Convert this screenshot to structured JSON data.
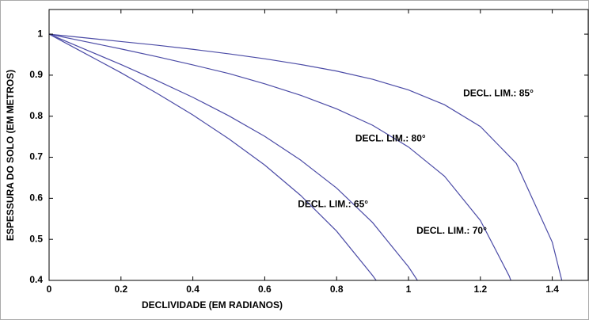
{
  "chart_data": {
    "type": "line",
    "xlabel": "DECLIVIDADE (EM RADIANOS)",
    "ylabel": "ESPESSURA DO SOLO (EM METROS)",
    "xlim": [
      0,
      1.5
    ],
    "ylim": [
      0.4,
      1.06
    ],
    "xticks": [
      0,
      0.2,
      0.4,
      0.6,
      0.8,
      1,
      1.2,
      1.4
    ],
    "yticks": [
      0.4,
      0.5,
      0.6,
      0.7,
      0.8,
      0.9,
      1
    ],
    "grid": false,
    "series": [
      {
        "name": "DECL. LIM.: 85°",
        "color": "#4b4ba6",
        "x": [
          0,
          0.1,
          0.2,
          0.3,
          0.4,
          0.5,
          0.6,
          0.7,
          0.8,
          0.9,
          1.0,
          1.1,
          1.2,
          1.3,
          1.4,
          1.43
        ],
        "values": [
          1,
          0.991,
          0.982,
          0.973,
          0.963,
          0.952,
          0.94,
          0.926,
          0.91,
          0.89,
          0.864,
          0.828,
          0.775,
          0.685,
          0.493,
          0.388
        ]
      },
      {
        "name": "DECL. LIM.: 80°",
        "color": "#4b4ba6",
        "x": [
          0,
          0.1,
          0.2,
          0.3,
          0.4,
          0.5,
          0.6,
          0.7,
          0.8,
          0.9,
          1.0,
          1.1,
          1.2,
          1.28,
          1.3
        ],
        "values": [
          1,
          0.982,
          0.964,
          0.945,
          0.925,
          0.904,
          0.879,
          0.851,
          0.818,
          0.778,
          0.725,
          0.654,
          0.546,
          0.411,
          0.365
        ]
      },
      {
        "name": "DECL. LIM.: 70°",
        "color": "#4b4ba6",
        "x": [
          0,
          0.1,
          0.2,
          0.3,
          0.4,
          0.5,
          0.6,
          0.7,
          0.8,
          0.9,
          1.0,
          1.04
        ],
        "values": [
          1,
          0.963,
          0.926,
          0.887,
          0.846,
          0.801,
          0.751,
          0.693,
          0.625,
          0.541,
          0.433,
          0.38
        ]
      },
      {
        "name": "DECL. LIM.: 65°",
        "color": "#4b4ba6",
        "x": [
          0,
          0.1,
          0.2,
          0.3,
          0.4,
          0.5,
          0.6,
          0.7,
          0.8,
          0.9,
          0.92
        ],
        "values": [
          1,
          0.953,
          0.906,
          0.856,
          0.803,
          0.745,
          0.681,
          0.607,
          0.52,
          0.412,
          0.388
        ]
      }
    ]
  }
}
